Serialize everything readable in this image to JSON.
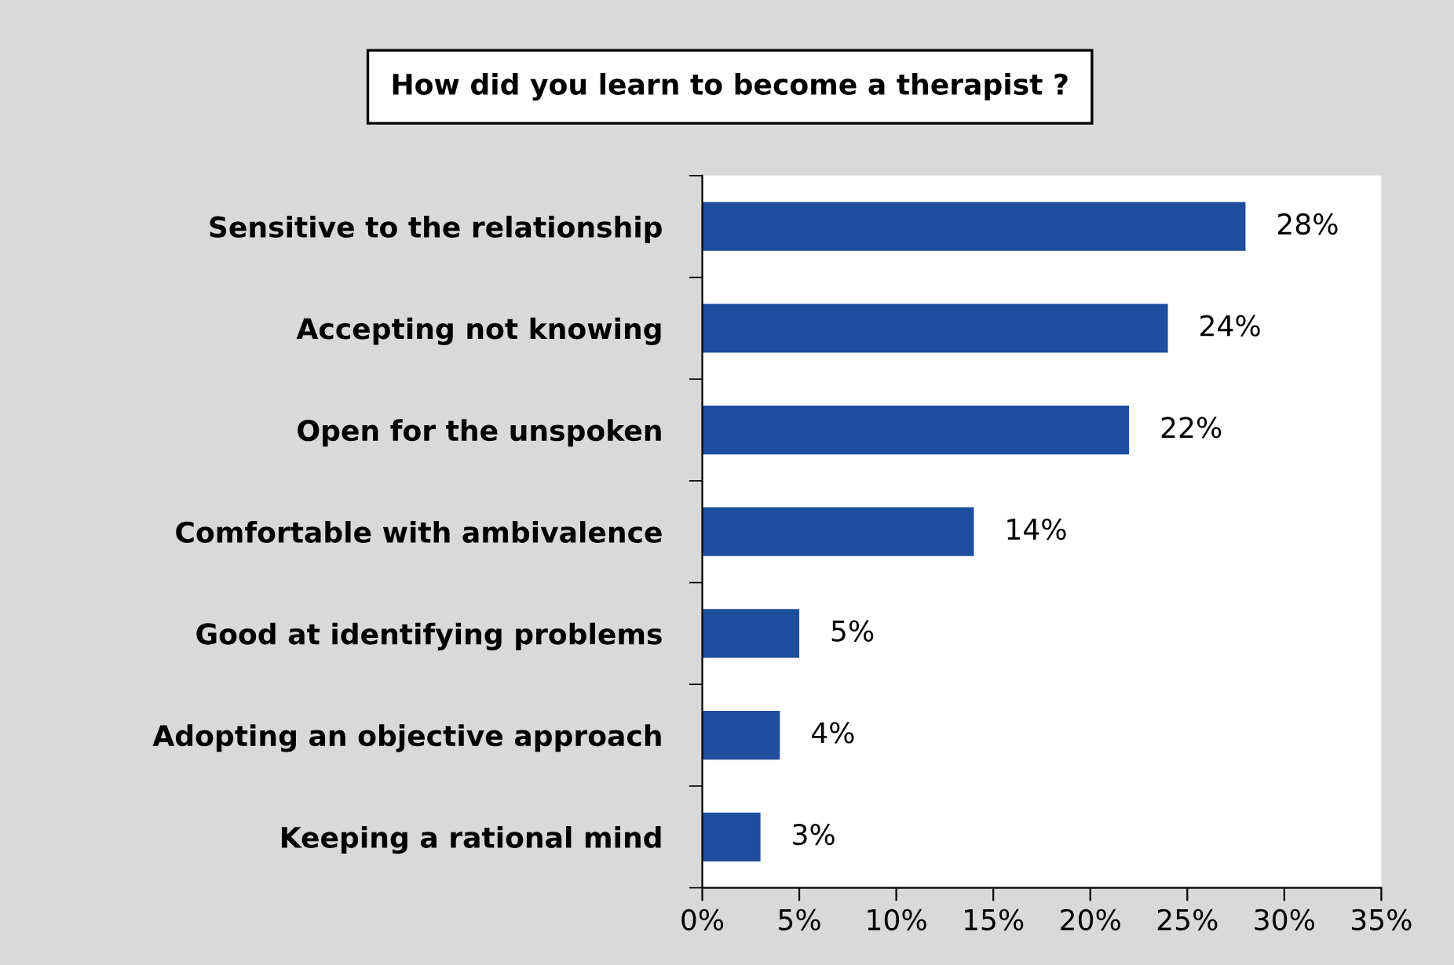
{
  "chart_data": {
    "type": "bar",
    "orientation": "horizontal",
    "title": "How did you learn to become a therapist ?",
    "categories": [
      "Sensitive to the relationship",
      "Accepting not knowing",
      "Open for the unspoken",
      "Comfortable with ambivalence",
      "Good at identifying problems",
      "Adopting an objective approach",
      "Keeping a rational mind"
    ],
    "values": [
      28,
      24,
      22,
      14,
      5,
      4,
      3
    ],
    "value_labels": [
      "28%",
      "24%",
      "22%",
      "14%",
      "5%",
      "4%",
      "3%"
    ],
    "color": "#1f4e9f",
    "xlim": [
      0,
      35
    ],
    "xticks": [
      {
        "value": 0,
        "label": "0%"
      },
      {
        "value": 5,
        "label": "5%"
      },
      {
        "value": 10,
        "label": "10%"
      },
      {
        "value": 15,
        "label": "15%"
      },
      {
        "value": 20,
        "label": "20%"
      },
      {
        "value": 25,
        "label": "25%"
      },
      {
        "value": 30,
        "label": "30%"
      },
      {
        "value": 35,
        "label": "35%"
      }
    ],
    "grid": false,
    "legend": false
  }
}
